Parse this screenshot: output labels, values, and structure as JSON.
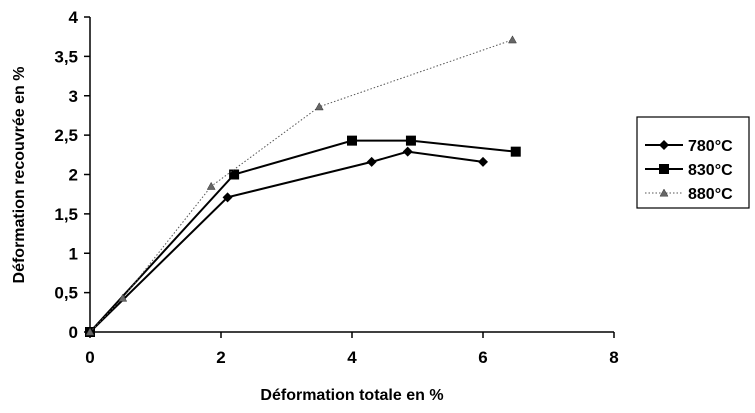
{
  "chart_data": {
    "type": "line",
    "title": "",
    "xlabel": "Déformation totale  en %",
    "ylabel": "Déformation recouvrée en %",
    "xlim": [
      0,
      8
    ],
    "ylim": [
      0,
      4
    ],
    "x_ticks": [
      "0",
      "2",
      "4",
      "6",
      "8"
    ],
    "y_ticks": [
      "0",
      "0,5",
      "1",
      "1,5",
      "2",
      "2,5",
      "3",
      "3,5",
      "4"
    ],
    "grid": false,
    "legend_position": "right",
    "series": [
      {
        "name": "780°C",
        "marker": "diamond",
        "line_style": "solid",
        "color": "#000000",
        "points": [
          [
            0,
            0
          ],
          [
            2.1,
            1.71
          ],
          [
            4.3,
            2.16
          ],
          [
            4.85,
            2.29
          ],
          [
            6.0,
            2.16
          ]
        ]
      },
      {
        "name": "830°C",
        "marker": "square",
        "line_style": "solid",
        "color": "#000000",
        "points": [
          [
            0,
            0
          ],
          [
            2.2,
            2.0
          ],
          [
            4.0,
            2.43
          ],
          [
            4.9,
            2.43
          ],
          [
            6.5,
            2.29
          ]
        ]
      },
      {
        "name": "880°C",
        "marker": "triangle",
        "line_style": "dotted",
        "color": "#000000",
        "points": [
          [
            0,
            0
          ],
          [
            0.5,
            0.43
          ],
          [
            1.85,
            1.85
          ],
          [
            3.5,
            2.86
          ],
          [
            6.45,
            3.71
          ]
        ]
      }
    ]
  }
}
